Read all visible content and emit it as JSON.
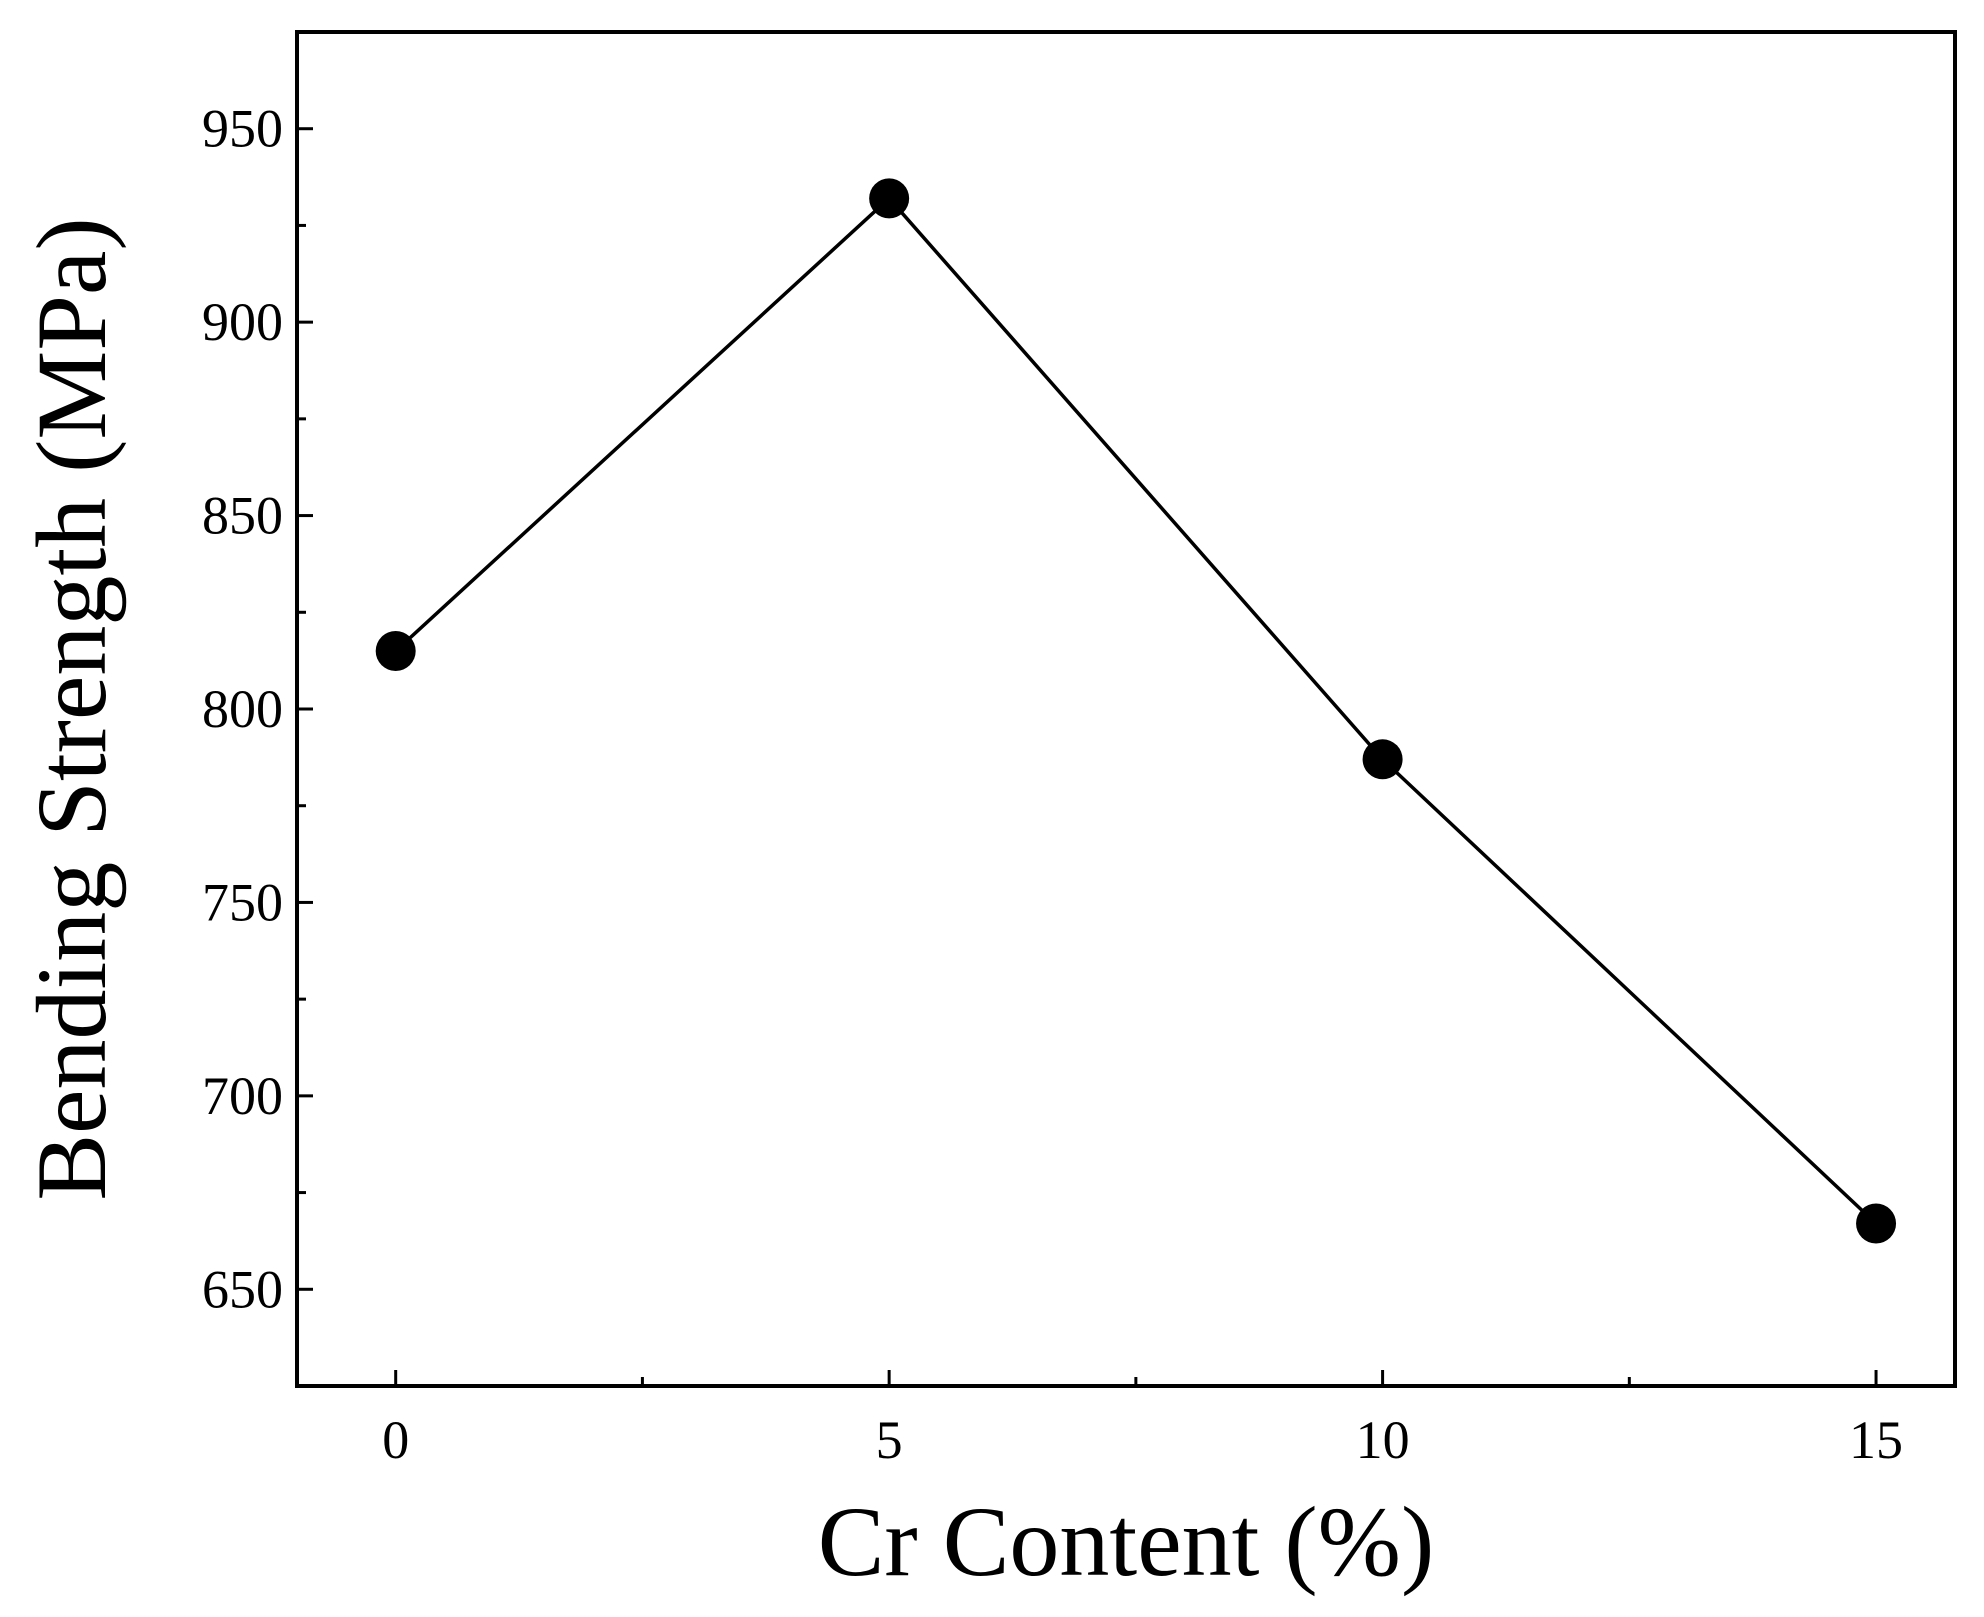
{
  "chart_data": {
    "type": "line",
    "title": "",
    "xlabel": "Cr Content (%)",
    "ylabel": "Bending Strength (MPa)",
    "xlim": [
      -1,
      15.8
    ],
    "ylim": [
      625,
      975
    ],
    "x_ticks": [
      0,
      5,
      10,
      15
    ],
    "x_minor_ticks": [
      2.5,
      7.5,
      12.5
    ],
    "y_ticks": [
      650,
      700,
      750,
      800,
      850,
      900,
      950
    ],
    "y_minor_ticks": [
      675,
      725,
      775,
      825,
      875,
      925
    ],
    "grid": false,
    "series": [
      {
        "x": [
          0,
          5,
          10,
          15
        ],
        "values": [
          815,
          932,
          787,
          667
        ],
        "color": "#000000",
        "marker": "circle"
      }
    ]
  }
}
